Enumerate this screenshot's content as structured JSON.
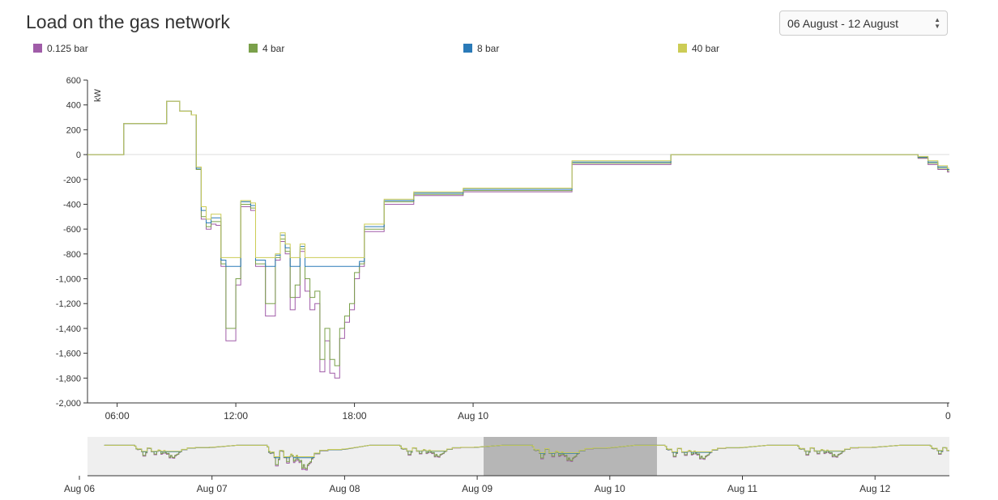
{
  "header": {
    "title": "Load on the gas network",
    "range_selector": {
      "value": "06 August - 12 August"
    }
  },
  "colors": {
    "0.125 bar": "#a05ca8",
    "4 bar": "#7aa04a",
    "8 bar": "#2a7ab8",
    "40 bar": "#cccc55",
    "brush_background": "#efefef",
    "brush_selection": "#b6b6b6"
  },
  "icons": {
    "select_arrows": "up-down-arrows-icon"
  },
  "chart_data": [
    {
      "type": "line",
      "step": true,
      "title": "",
      "xlabel": "",
      "ylabel": "kW",
      "ylim": [
        -2000,
        600
      ],
      "y_ticks": [
        "600",
        "400",
        "200",
        "0",
        "-200",
        "-400",
        "-600",
        "-800",
        "-1,000",
        "-1,200",
        "-1,400",
        "-1,600",
        "-1,800",
        "-2,000"
      ],
      "x_ticks": [
        "06:00",
        "12:00",
        "18:00",
        "Aug 10",
        "0"
      ],
      "x_range": [
        "2023-08-09 04:30",
        "2023-08-11 00:05"
      ],
      "grid": false,
      "legend_position": "top",
      "x": [
        "04:30",
        "06:20",
        "08:30",
        "09:10",
        "09:45",
        "10:00",
        "10:15",
        "10:30",
        "10:45",
        "11:00",
        "11:15",
        "11:30",
        "12:00",
        "12:15",
        "12:45",
        "13:00",
        "13:30",
        "14:00",
        "14:15",
        "14:30",
        "14:45",
        "15:00",
        "15:15",
        "15:30",
        "15:45",
        "16:00",
        "16:15",
        "16:30",
        "16:45",
        "17:00",
        "17:15",
        "17:30",
        "17:45",
        "18:00",
        "18:15",
        "18:30",
        "19:30",
        "21:00",
        "23:30",
        "Aug 10 05:00",
        "Aug 10 10:00",
        "Aug 10 16:00",
        "Aug 10 20:00",
        "Aug 10 22:00",
        "Aug 10 22:30",
        "Aug 10 23:00",
        "Aug 10 23:30",
        "Aug 10 23:59"
      ],
      "series": [
        {
          "name": "0.125 bar",
          "values": [
            0,
            250,
            430,
            350,
            320,
            -120,
            -520,
            -600,
            -560,
            -570,
            -900,
            -1500,
            -1050,
            -420,
            -450,
            -900,
            -1300,
            -850,
            -700,
            -800,
            -1250,
            -1150,
            -780,
            -1100,
            -1250,
            -1200,
            -1750,
            -1500,
            -1760,
            -1800,
            -1480,
            -1350,
            -1250,
            -1000,
            -900,
            -620,
            -400,
            -330,
            -300,
            -80,
            0,
            0,
            0,
            0,
            -30,
            -80,
            -120,
            -140
          ]
        },
        {
          "name": "4 bar",
          "values": [
            0,
            250,
            430,
            350,
            320,
            -120,
            -500,
            -580,
            -540,
            -540,
            -880,
            -1400,
            -1000,
            -400,
            -430,
            -880,
            -1200,
            -830,
            -680,
            -780,
            -1150,
            -1050,
            -760,
            -1000,
            -1150,
            -1100,
            -1650,
            -1400,
            -1650,
            -1700,
            -1400,
            -1300,
            -1200,
            -950,
            -880,
            -600,
            -380,
            -320,
            -290,
            -70,
            0,
            0,
            0,
            0,
            -25,
            -70,
            -110,
            -130
          ]
        },
        {
          "name": "8 bar",
          "values": [
            0,
            250,
            430,
            350,
            320,
            -110,
            -450,
            -550,
            -510,
            -510,
            -850,
            -900,
            -900,
            -380,
            -410,
            -850,
            -900,
            -810,
            -650,
            -750,
            -900,
            -900,
            -740,
            -900,
            -900,
            -900,
            -900,
            -900,
            -900,
            -900,
            -900,
            -900,
            -900,
            -900,
            -860,
            -580,
            -370,
            -310,
            -280,
            -60,
            0,
            0,
            0,
            0,
            -20,
            -60,
            -100,
            -120
          ]
        },
        {
          "name": "40 bar",
          "values": [
            0,
            250,
            430,
            350,
            320,
            -100,
            -420,
            -520,
            -480,
            -480,
            -830,
            -830,
            -830,
            -370,
            -390,
            -830,
            -830,
            -800,
            -630,
            -720,
            -830,
            -830,
            -720,
            -830,
            -830,
            -830,
            -830,
            -830,
            -830,
            -830,
            -830,
            -830,
            -830,
            -830,
            -830,
            -560,
            -360,
            -300,
            -270,
            -50,
            0,
            0,
            0,
            0,
            -15,
            -50,
            -90,
            -110
          ]
        }
      ]
    },
    {
      "type": "line",
      "step": true,
      "title": "",
      "x_ticks": [
        "Aug 06",
        "Aug 07",
        "Aug 08",
        "Aug 09",
        "Aug 10",
        "Aug 11",
        "Aug 12"
      ],
      "selected_range": [
        "Aug 09 00:00",
        "Aug 10 08:00"
      ],
      "grid": false
    }
  ]
}
